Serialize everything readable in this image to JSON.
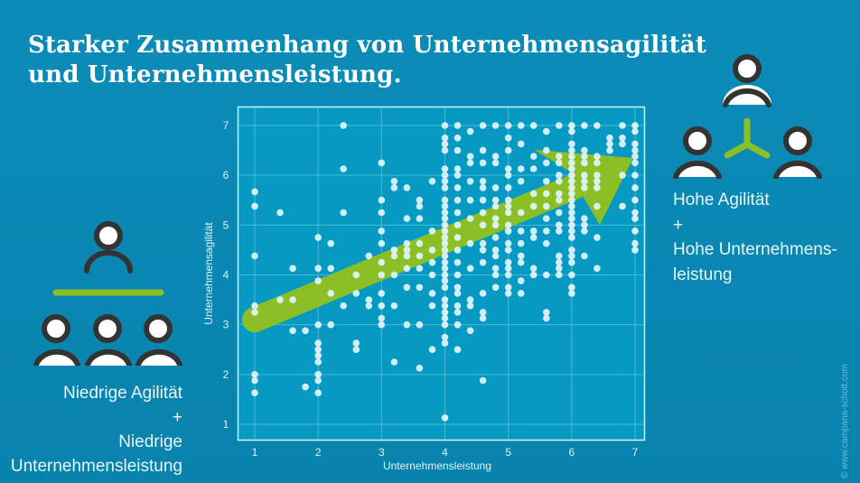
{
  "title": {
    "line1": "Starker Zusammenhang von Unternehmensagilität",
    "line2": "und Unternehmensleistung."
  },
  "labels": {
    "high": {
      "line1": "Hohe Agilität",
      "plus": "+",
      "line2": "Hohe Unternehmens-",
      "line3": "leistung"
    },
    "low": {
      "line1": "Niedrige Agilität",
      "plus": "+",
      "line2": "Niedrige",
      "line3": "Unternehmensleistung"
    }
  },
  "copyright": "© www.campana-schott.com",
  "icons": {
    "high": "network-team-icon",
    "low": "hierarchy-team-icon"
  },
  "colors": {
    "background": "#0a87b3",
    "plot_background": "#069ac3",
    "point": "#dff2fa",
    "arrow": "#8cbf26",
    "person_stroke": "#333333",
    "grid": "#5cc0dd"
  },
  "chart_data": {
    "type": "scatter",
    "title": "",
    "xlabel": "Unternehmensleistung",
    "ylabel": "Unternehmensagilität",
    "xlim": [
      0.73,
      7.15
    ],
    "ylim": [
      0.7,
      7.38
    ],
    "xticks": [
      1,
      2,
      3,
      4,
      5,
      6,
      7
    ],
    "yticks": [
      1,
      2,
      3,
      4,
      5,
      6,
      7
    ],
    "grid": true,
    "trend_arrow": {
      "from": [
        1,
        3.1
      ],
      "to": [
        7,
        6.3
      ],
      "color": "#8cbf26"
    },
    "points": [
      [
        1,
        5.67
      ],
      [
        1,
        5.38
      ],
      [
        1,
        4.38
      ],
      [
        1,
        3.38
      ],
      [
        1,
        3.25
      ],
      [
        1,
        2.0
      ],
      [
        1,
        1.88
      ],
      [
        1,
        1.63
      ],
      [
        1.4,
        5.25
      ],
      [
        1.4,
        3.5
      ],
      [
        1.6,
        4.13
      ],
      [
        1.6,
        3.5
      ],
      [
        1.6,
        2.88
      ],
      [
        1.8,
        2.88
      ],
      [
        1.8,
        1.75
      ],
      [
        2,
        4.75
      ],
      [
        2,
        4.13
      ],
      [
        2,
        3.88
      ],
      [
        2,
        3.0
      ],
      [
        2,
        2.63
      ],
      [
        2,
        2.5
      ],
      [
        2,
        2.38
      ],
      [
        2,
        2.25
      ],
      [
        2,
        2.0
      ],
      [
        2,
        1.88
      ],
      [
        2,
        1.63
      ],
      [
        2.2,
        4.63
      ],
      [
        2.2,
        4.13
      ],
      [
        2.2,
        3.63
      ],
      [
        2.2,
        3.0
      ],
      [
        2.4,
        7.0
      ],
      [
        2.4,
        6.13
      ],
      [
        2.4,
        5.25
      ],
      [
        2.4,
        3.38
      ],
      [
        2.6,
        4.0
      ],
      [
        2.6,
        3.63
      ],
      [
        2.6,
        2.63
      ],
      [
        2.6,
        2.5
      ],
      [
        2.8,
        4.38
      ],
      [
        2.8,
        3.5
      ],
      [
        2.8,
        3.38
      ],
      [
        3,
        6.25
      ],
      [
        3,
        5.5
      ],
      [
        3,
        5.25
      ],
      [
        3,
        4.88
      ],
      [
        3,
        4.63
      ],
      [
        3,
        4.25
      ],
      [
        3,
        4.0
      ],
      [
        3,
        3.63
      ],
      [
        3,
        3.38
      ],
      [
        3,
        3.13
      ],
      [
        3,
        3.0
      ],
      [
        3.2,
        5.88
      ],
      [
        3.2,
        5.75
      ],
      [
        3.2,
        4.5
      ],
      [
        3.2,
        4.38
      ],
      [
        3.2,
        4.0
      ],
      [
        3.2,
        3.38
      ],
      [
        3.2,
        2.25
      ],
      [
        3.4,
        5.75
      ],
      [
        3.4,
        5.13
      ],
      [
        3.4,
        4.63
      ],
      [
        3.4,
        4.5
      ],
      [
        3.4,
        4.38
      ],
      [
        3.4,
        4.13
      ],
      [
        3.4,
        3.75
      ],
      [
        3.4,
        3.0
      ],
      [
        3.6,
        5.5
      ],
      [
        3.6,
        5.38
      ],
      [
        3.6,
        5.13
      ],
      [
        3.6,
        4.63
      ],
      [
        3.6,
        4.38
      ],
      [
        3.6,
        4.13
      ],
      [
        3.6,
        3.75
      ],
      [
        3.6,
        3.0
      ],
      [
        3.6,
        2.13
      ],
      [
        3.8,
        5.88
      ],
      [
        3.8,
        4.88
      ],
      [
        3.8,
        4.5
      ],
      [
        3.8,
        4.25
      ],
      [
        3.8,
        4.0
      ],
      [
        3.8,
        3.63
      ],
      [
        3.8,
        3.38
      ],
      [
        3.8,
        2.5
      ],
      [
        4,
        7.0
      ],
      [
        4,
        6.75
      ],
      [
        4,
        6.63
      ],
      [
        4,
        6.5
      ],
      [
        4,
        6.13
      ],
      [
        4,
        6.0
      ],
      [
        4,
        5.88
      ],
      [
        4,
        5.75
      ],
      [
        4,
        5.5
      ],
      [
        4,
        5.38
      ],
      [
        4,
        5.25
      ],
      [
        4,
        5.13
      ],
      [
        4,
        5.0
      ],
      [
        4,
        4.88
      ],
      [
        4,
        4.75
      ],
      [
        4,
        4.63
      ],
      [
        4,
        4.5
      ],
      [
        4,
        4.38
      ],
      [
        4,
        4.25
      ],
      [
        4,
        4.13
      ],
      [
        4,
        4.0
      ],
      [
        4,
        3.88
      ],
      [
        4,
        3.75
      ],
      [
        4,
        3.5
      ],
      [
        4,
        3.38
      ],
      [
        4,
        3.25
      ],
      [
        4,
        3.13
      ],
      [
        4,
        3.0
      ],
      [
        4,
        2.75
      ],
      [
        4,
        2.63
      ],
      [
        4,
        1.13
      ],
      [
        4.2,
        7.0
      ],
      [
        4.2,
        6.75
      ],
      [
        4.2,
        6.5
      ],
      [
        4.2,
        6.13
      ],
      [
        4.2,
        6.0
      ],
      [
        4.2,
        5.75
      ],
      [
        4.2,
        5.5
      ],
      [
        4.2,
        5.25
      ],
      [
        4.2,
        5.0
      ],
      [
        4.2,
        4.75
      ],
      [
        4.2,
        4.5
      ],
      [
        4.2,
        4.25
      ],
      [
        4.2,
        4.0
      ],
      [
        4.2,
        3.75
      ],
      [
        4.2,
        3.63
      ],
      [
        4.2,
        3.38
      ],
      [
        4.2,
        3.25
      ],
      [
        4.2,
        3.0
      ],
      [
        4.2,
        2.5
      ],
      [
        4.4,
        6.88
      ],
      [
        4.4,
        6.38
      ],
      [
        4.4,
        6.25
      ],
      [
        4.4,
        5.88
      ],
      [
        4.4,
        5.5
      ],
      [
        4.4,
        5.13
      ],
      [
        4.4,
        4.63
      ],
      [
        4.4,
        4.13
      ],
      [
        4.4,
        3.5
      ],
      [
        4.4,
        3.38
      ],
      [
        4.4,
        2.88
      ],
      [
        4.6,
        7.0
      ],
      [
        4.6,
        6.5
      ],
      [
        4.6,
        6.25
      ],
      [
        4.6,
        5.88
      ],
      [
        4.6,
        5.75
      ],
      [
        4.6,
        5.5
      ],
      [
        4.6,
        5.25
      ],
      [
        4.6,
        5.0
      ],
      [
        4.6,
        4.63
      ],
      [
        4.6,
        4.5
      ],
      [
        4.6,
        4.25
      ],
      [
        4.6,
        3.63
      ],
      [
        4.6,
        3.25
      ],
      [
        4.6,
        3.13
      ],
      [
        4.6,
        1.88
      ],
      [
        4.8,
        7.0
      ],
      [
        4.8,
        6.38
      ],
      [
        4.8,
        6.25
      ],
      [
        4.8,
        5.75
      ],
      [
        4.8,
        5.5
      ],
      [
        4.8,
        5.38
      ],
      [
        4.8,
        5.13
      ],
      [
        4.8,
        5.0
      ],
      [
        4.8,
        4.75
      ],
      [
        4.8,
        4.5
      ],
      [
        4.8,
        4.38
      ],
      [
        4.8,
        4.13
      ],
      [
        4.8,
        4.0
      ],
      [
        4.8,
        3.75
      ],
      [
        5,
        7.0
      ],
      [
        5,
        6.75
      ],
      [
        5,
        6.5
      ],
      [
        5,
        6.13
      ],
      [
        5,
        6.0
      ],
      [
        5,
        5.75
      ],
      [
        5,
        5.5
      ],
      [
        5,
        5.38
      ],
      [
        5,
        5.25
      ],
      [
        5,
        5.0
      ],
      [
        5,
        4.88
      ],
      [
        5,
        4.63
      ],
      [
        5,
        4.5
      ],
      [
        5,
        4.25
      ],
      [
        5,
        4.13
      ],
      [
        5,
        4.0
      ],
      [
        5,
        3.75
      ],
      [
        5,
        3.63
      ],
      [
        5.2,
        7.0
      ],
      [
        5.2,
        6.63
      ],
      [
        5.2,
        6.13
      ],
      [
        5.2,
        5.88
      ],
      [
        5.2,
        5.25
      ],
      [
        5.2,
        4.88
      ],
      [
        5.2,
        4.63
      ],
      [
        5.2,
        4.38
      ],
      [
        5.2,
        4.25
      ],
      [
        5.2,
        3.88
      ],
      [
        5.2,
        3.63
      ],
      [
        5.4,
        7.0
      ],
      [
        5.4,
        6.38
      ],
      [
        5.4,
        6.13
      ],
      [
        5.4,
        5.63
      ],
      [
        5.4,
        5.38
      ],
      [
        5.4,
        4.88
      ],
      [
        5.4,
        4.75
      ],
      [
        5.4,
        4.13
      ],
      [
        5.4,
        4.0
      ],
      [
        5.6,
        6.88
      ],
      [
        5.6,
        6.5
      ],
      [
        5.6,
        6.25
      ],
      [
        5.6,
        5.88
      ],
      [
        5.6,
        5.63
      ],
      [
        5.6,
        5.38
      ],
      [
        5.6,
        5.13
      ],
      [
        5.6,
        4.88
      ],
      [
        5.6,
        4.63
      ],
      [
        5.6,
        4.0
      ],
      [
        5.6,
        3.25
      ],
      [
        5.6,
        3.13
      ],
      [
        5.8,
        7.0
      ],
      [
        5.8,
        6.38
      ],
      [
        5.8,
        6.25
      ],
      [
        5.8,
        6.0
      ],
      [
        5.8,
        5.88
      ],
      [
        5.8,
        5.63
      ],
      [
        5.8,
        5.5
      ],
      [
        5.8,
        5.25
      ],
      [
        5.8,
        5.0
      ],
      [
        5.8,
        4.88
      ],
      [
        5.8,
        4.38
      ],
      [
        5.8,
        4.25
      ],
      [
        5.8,
        4.13
      ],
      [
        5.8,
        4.0
      ],
      [
        6,
        7.0
      ],
      [
        6,
        6.88
      ],
      [
        6,
        6.63
      ],
      [
        6,
        6.5
      ],
      [
        6,
        6.38
      ],
      [
        6,
        6.25
      ],
      [
        6,
        6.13
      ],
      [
        6,
        6.0
      ],
      [
        6,
        5.88
      ],
      [
        6,
        5.75
      ],
      [
        6,
        5.63
      ],
      [
        6,
        5.5
      ],
      [
        6,
        5.38
      ],
      [
        6,
        5.25
      ],
      [
        6,
        5.13
      ],
      [
        6,
        5.0
      ],
      [
        6,
        4.88
      ],
      [
        6,
        4.75
      ],
      [
        6,
        4.5
      ],
      [
        6,
        4.38
      ],
      [
        6,
        4.25
      ],
      [
        6,
        4.0
      ],
      [
        6,
        3.75
      ],
      [
        6,
        3.63
      ],
      [
        6.2,
        7.0
      ],
      [
        6.2,
        6.5
      ],
      [
        6.2,
        6.38
      ],
      [
        6.2,
        6.25
      ],
      [
        6.2,
        6.0
      ],
      [
        6.2,
        5.88
      ],
      [
        6.2,
        5.75
      ],
      [
        6.2,
        5.13
      ],
      [
        6.2,
        5.0
      ],
      [
        6.2,
        4.88
      ],
      [
        6.2,
        4.38
      ],
      [
        6.4,
        7.0
      ],
      [
        6.4,
        6.38
      ],
      [
        6.4,
        6.25
      ],
      [
        6.4,
        6.0
      ],
      [
        6.4,
        5.88
      ],
      [
        6.4,
        5.75
      ],
      [
        6.4,
        5.38
      ],
      [
        6.4,
        4.75
      ],
      [
        6.4,
        4.13
      ],
      [
        6.6,
        6.75
      ],
      [
        6.6,
        6.63
      ],
      [
        6.6,
        6.5
      ],
      [
        6.8,
        7.0
      ],
      [
        6.8,
        6.75
      ],
      [
        6.8,
        6.63
      ],
      [
        6.8,
        6.0
      ],
      [
        6.8,
        5.38
      ],
      [
        7,
        7.0
      ],
      [
        7,
        6.88
      ],
      [
        7,
        6.63
      ],
      [
        7,
        6.5
      ],
      [
        7,
        6.38
      ],
      [
        7,
        6.25
      ],
      [
        7,
        6.0
      ],
      [
        7,
        5.75
      ],
      [
        7,
        5.5
      ],
      [
        7,
        5.25
      ],
      [
        7,
        5.13
      ],
      [
        7,
        4.88
      ],
      [
        7,
        4.63
      ],
      [
        7,
        4.5
      ]
    ]
  }
}
